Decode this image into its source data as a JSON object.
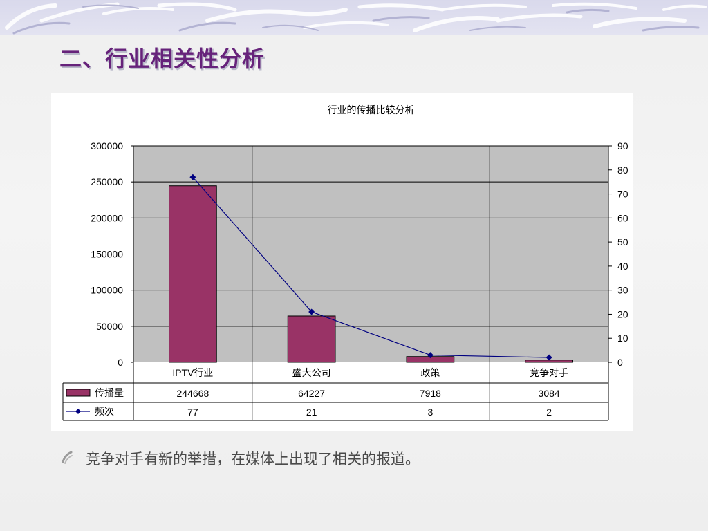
{
  "slide": {
    "title": "二、行业相关性分析",
    "bullet_text": "竞争对手有新的举措，在媒体上出现了相关的报道。"
  },
  "colors": {
    "title": "#66227a",
    "bar": "#993366",
    "line": "#000080",
    "plot_bg": "#c0c0c0"
  },
  "chart_data": {
    "type": "bar",
    "title": "行业的传播比较分析",
    "categories": [
      "IPTV行业",
      "盛大公司",
      "政策",
      "竞争对手"
    ],
    "series": [
      {
        "name": "传播量",
        "type": "bar",
        "axis": "left",
        "values": [
          244668,
          64227,
          7918,
          3084
        ]
      },
      {
        "name": "频次",
        "type": "line",
        "axis": "right",
        "values": [
          77,
          21,
          3,
          2
        ]
      }
    ],
    "y_left": {
      "min": 0,
      "max": 300000,
      "ticks": [
        "0",
        "50000",
        "100000",
        "150000",
        "200000",
        "250000",
        "300000"
      ]
    },
    "y_right": {
      "min": 0,
      "max": 90,
      "ticks": [
        "0",
        "10",
        "20",
        "30",
        "40",
        "50",
        "60",
        "70",
        "80",
        "90"
      ]
    },
    "grid": true,
    "data_table": true
  }
}
